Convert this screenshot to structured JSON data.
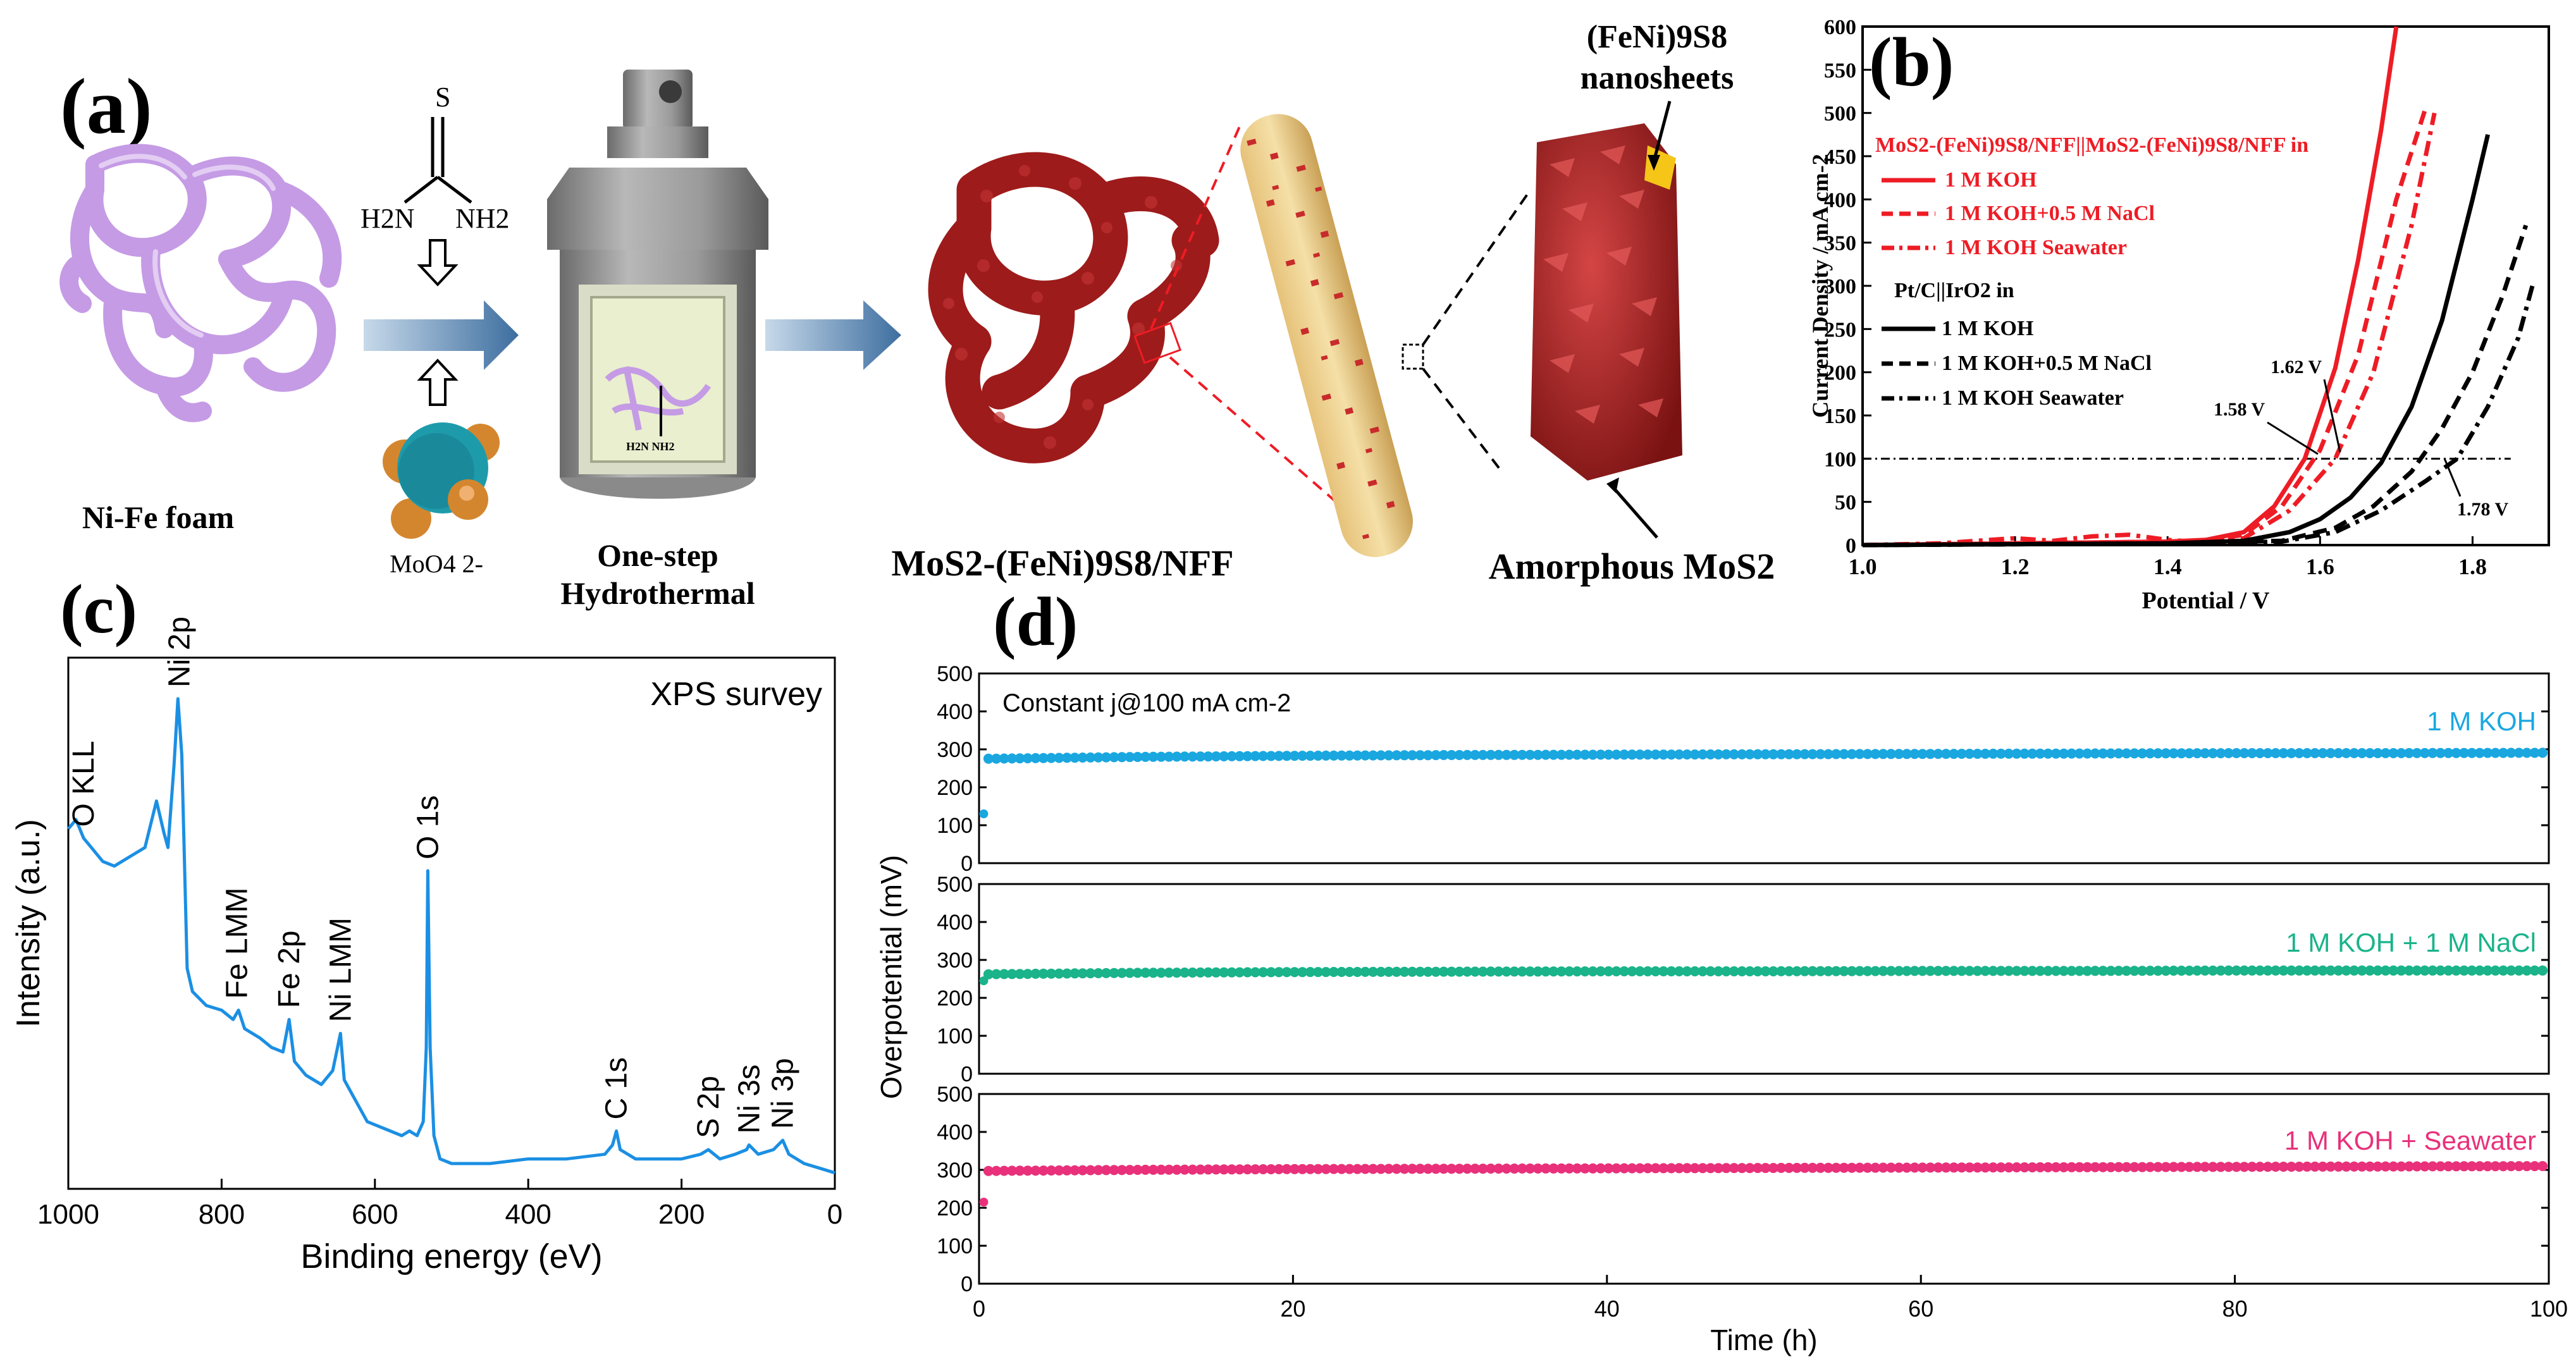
{
  "colors": {
    "red": "#ee1c25",
    "black": "#000000",
    "blue": "#1aa7e0",
    "green": "#1ab38a",
    "pink": "#e8317a",
    "xps": "#1b8fe3",
    "foam": "#c59be5",
    "maroon": "#9e1b1b",
    "steel": "#8a8a8a"
  },
  "panel_a": {
    "label": "(a)",
    "foam_label": "Ni-Fe foam",
    "thiourea_s": "S",
    "thiourea_n1": "H2N",
    "thiourea_n2": "NH2",
    "molybdate_label": "MoO4 2-",
    "reactor_label_1": "One-step",
    "reactor_label_2": "Hydrothermal",
    "liner_text": "H2N NH2",
    "product_label": "MoS2-(FeNi)9S8/NFF",
    "nanosheets_label_1": "(FeNi)9S8",
    "nanosheets_label_2": "nanosheets",
    "amorphous_label": "Amorphous MoS2"
  },
  "chart_data": [
    {
      "panel": "(b)",
      "type": "line",
      "xlabel": "Potential / V",
      "ylabel": "Current Density / mA cm-2",
      "xlim": [
        1.0,
        1.9
      ],
      "ylim": [
        0,
        600
      ],
      "xticks": [
        "1.0",
        "1.2",
        "1.4",
        "1.6",
        "1.8"
      ],
      "yticks": [
        "0",
        "50",
        "100",
        "150",
        "200",
        "250",
        "300",
        "350",
        "400",
        "450",
        "500",
        "550",
        "600"
      ],
      "legend_group1_title": "MoS2-(FeNi)9S8/NFF||MoS2-(FeNi)9S8/NFF in",
      "legend_group2_title": "Pt/C||IrO2 in",
      "reference_line_y": 100,
      "annotations": [
        "1.58 V",
        "1.62 V",
        "1.78 V"
      ],
      "series": [
        {
          "name": "1 M KOH",
          "group": 1,
          "style": "solid",
          "x": [
            1.0,
            1.1,
            1.2,
            1.3,
            1.4,
            1.45,
            1.5,
            1.54,
            1.58,
            1.62,
            1.65,
            1.68,
            1.7
          ],
          "y": [
            0,
            1,
            2,
            3,
            4,
            6,
            15,
            45,
            100,
            205,
            330,
            480,
            600
          ]
        },
        {
          "name": "1 M KOH+0.5 M NaCl",
          "group": 1,
          "style": "dashed",
          "x": [
            1.0,
            1.1,
            1.2,
            1.3,
            1.4,
            1.45,
            1.5,
            1.55,
            1.6,
            1.65,
            1.7,
            1.74
          ],
          "y": [
            0,
            1,
            2,
            3,
            4,
            5,
            12,
            45,
            110,
            220,
            400,
            510
          ]
        },
        {
          "name": "1 M KOH Seawater",
          "group": 1,
          "style": "dashdot",
          "x": [
            1.0,
            1.1,
            1.2,
            1.25,
            1.3,
            1.35,
            1.4,
            1.45,
            1.5,
            1.56,
            1.62,
            1.67,
            1.72,
            1.75
          ],
          "y": [
            0,
            2,
            8,
            5,
            10,
            12,
            6,
            3,
            8,
            40,
            100,
            200,
            370,
            500
          ]
        },
        {
          "name": "1 M KOH",
          "group": 2,
          "style": "solid",
          "x": [
            1.0,
            1.2,
            1.4,
            1.5,
            1.56,
            1.6,
            1.64,
            1.68,
            1.72,
            1.76,
            1.8,
            1.82
          ],
          "y": [
            0,
            1,
            2,
            5,
            15,
            30,
            55,
            95,
            160,
            260,
            400,
            475
          ]
        },
        {
          "name": "1 M KOH+0.5 M NaCl",
          "group": 2,
          "style": "dashed",
          "x": [
            1.0,
            1.2,
            1.4,
            1.55,
            1.62,
            1.67,
            1.72,
            1.76,
            1.8,
            1.84,
            1.87
          ],
          "y": [
            0,
            1,
            2,
            5,
            20,
            45,
            85,
            135,
            200,
            290,
            370
          ]
        },
        {
          "name": "1 M KOH Seawater",
          "group": 2,
          "style": "dashdot",
          "x": [
            1.0,
            1.2,
            1.4,
            1.55,
            1.62,
            1.68,
            1.74,
            1.78,
            1.82,
            1.86,
            1.88
          ],
          "y": [
            0,
            1,
            2,
            4,
            15,
            40,
            75,
            100,
            160,
            240,
            305
          ]
        }
      ]
    },
    {
      "panel": "(c)",
      "type": "line",
      "title": "XPS survey",
      "xlabel": "Binding energy (eV)",
      "ylabel": "Intensity (a.u.)",
      "xlim": [
        1000,
        0
      ],
      "xticks": [
        "1000",
        "800",
        "600",
        "400",
        "200",
        "0"
      ],
      "peak_labels": [
        "O KLL",
        "Ni 2p",
        "Fe LMM",
        "Fe 2p",
        "Ni LMM",
        "O 1s",
        "C 1s",
        "S 2p",
        "Ni 3s",
        "Ni 3p"
      ],
      "peak_positions": [
        980,
        855,
        780,
        712,
        645,
        531,
        285,
        165,
        112,
        68
      ],
      "x": [
        1000,
        990,
        980,
        970,
        955,
        940,
        920,
        900,
        885,
        875,
        870,
        862,
        857,
        852,
        845,
        838,
        820,
        800,
        785,
        778,
        770,
        750,
        735,
        720,
        712,
        705,
        690,
        670,
        655,
        645,
        640,
        630,
        610,
        580,
        565,
        555,
        545,
        537,
        533,
        531,
        528,
        523,
        515,
        500,
        450,
        400,
        350,
        300,
        290,
        285,
        280,
        260,
        230,
        200,
        175,
        165,
        150,
        130,
        115,
        112,
        100,
        80,
        68,
        60,
        40,
        20,
        0
      ],
      "y": [
        0.72,
        0.74,
        0.7,
        0.68,
        0.65,
        0.64,
        0.66,
        0.68,
        0.78,
        0.71,
        0.68,
        0.86,
        1.0,
        0.88,
        0.42,
        0.37,
        0.34,
        0.33,
        0.31,
        0.33,
        0.29,
        0.27,
        0.25,
        0.24,
        0.31,
        0.22,
        0.19,
        0.17,
        0.2,
        0.28,
        0.18,
        0.15,
        0.09,
        0.07,
        0.06,
        0.07,
        0.06,
        0.09,
        0.25,
        0.63,
        0.25,
        0.06,
        0.01,
        0.0,
        0.0,
        0.01,
        0.01,
        0.02,
        0.04,
        0.07,
        0.03,
        0.01,
        0.01,
        0.01,
        0.02,
        0.03,
        0.01,
        0.02,
        0.03,
        0.04,
        0.02,
        0.03,
        0.05,
        0.02,
        0.0,
        -0.01,
        -0.02
      ]
    },
    {
      "panel": "(d)",
      "type": "scatter",
      "xlabel": "Time (h)",
      "ylabel": "Overpotential (mV)",
      "xlim": [
        0,
        100
      ],
      "ylim": [
        0,
        500
      ],
      "xticks": [
        "0",
        "20",
        "40",
        "60",
        "80",
        "100"
      ],
      "yticks": [
        "0",
        "100",
        "200",
        "300",
        "400",
        "500"
      ],
      "annotation": "Constant j@100 mA cm-2",
      "series": [
        {
          "name": "1 M KOH",
          "start": 130,
          "values": [
            275,
            280,
            283,
            285,
            286,
            287,
            288,
            289,
            290,
            290,
            291
          ]
        },
        {
          "name": "1 M KOH + 1 M NaCl",
          "start": 245,
          "values": [
            262,
            266,
            268,
            269,
            270,
            270,
            271,
            271,
            272,
            272,
            272
          ]
        },
        {
          "name": "1 M KOH + Seawater",
          "start": 215,
          "values": [
            297,
            300,
            302,
            303,
            304,
            305,
            306,
            307,
            308,
            309,
            310
          ]
        }
      ]
    }
  ]
}
